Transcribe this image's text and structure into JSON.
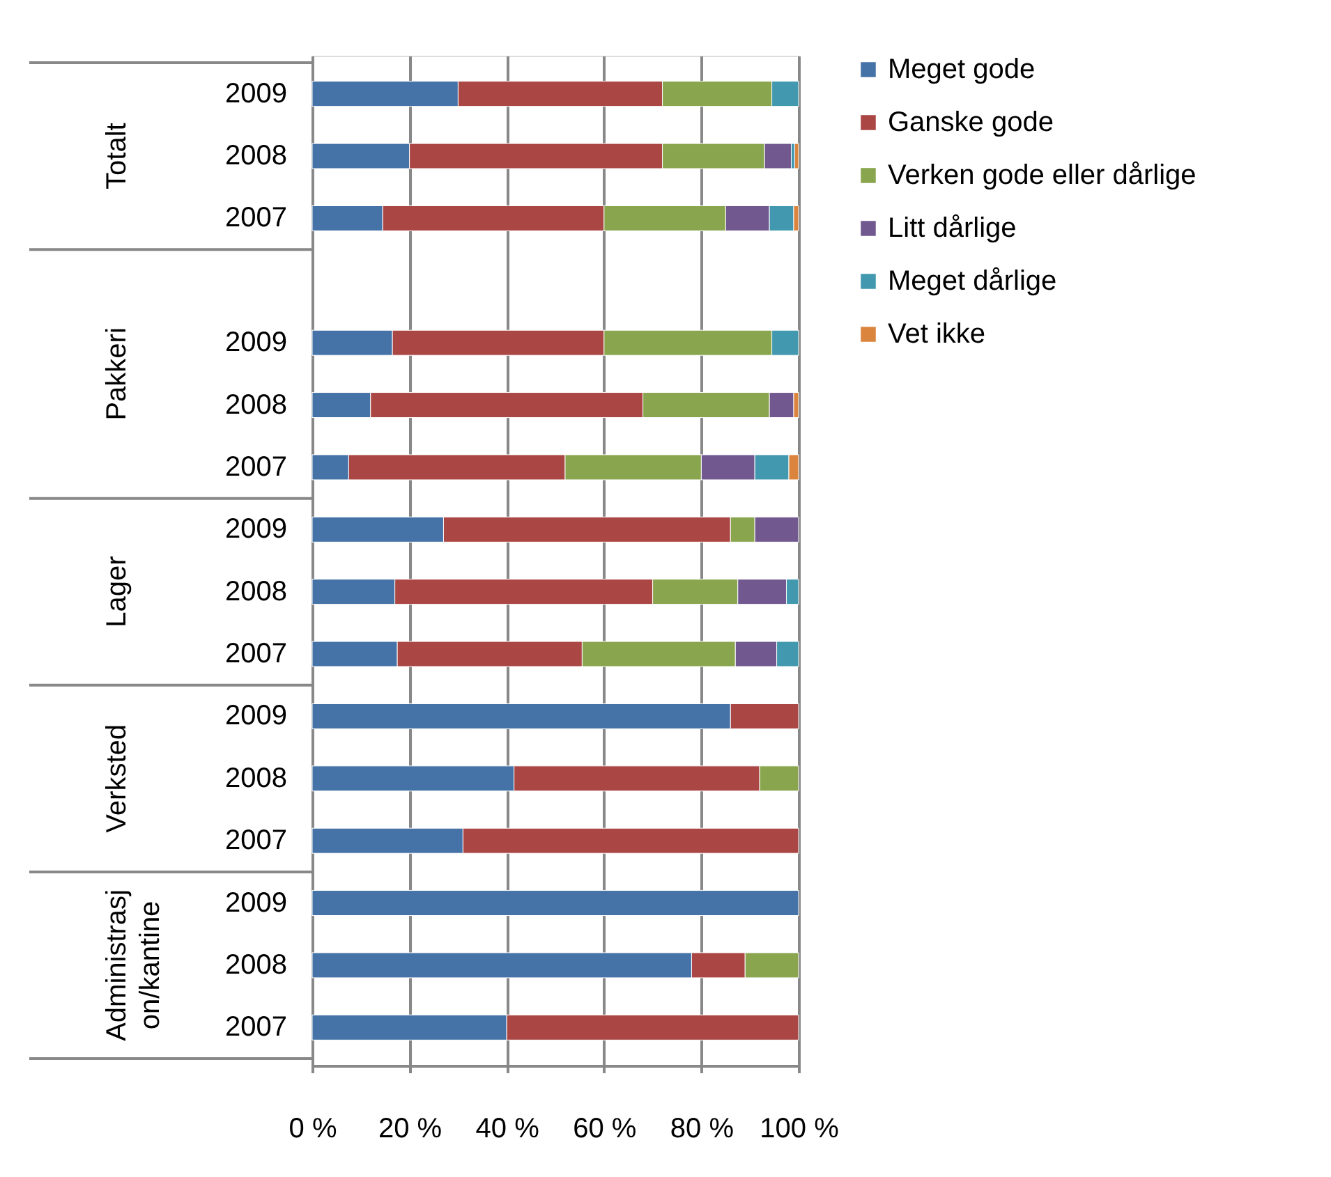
{
  "chart_data": {
    "type": "bar",
    "orientation": "horizontal",
    "stacked": true,
    "categories": [
      "2009",
      "2008",
      "2007",
      null,
      "2009",
      "2008",
      "2007",
      "2009",
      "2008",
      "2007",
      "2009",
      "2008",
      "2007",
      "2009",
      "2008",
      "2007"
    ],
    "series": [
      {
        "name": "Meget gode",
        "color": "#4572a7",
        "values": [
          30,
          20,
          14.5,
          null,
          16.5,
          12,
          7.5,
          27,
          17,
          17.5,
          86,
          41.5,
          31,
          100,
          78,
          40
        ]
      },
      {
        "name": "Ganske gode",
        "color": "#aa4643",
        "values": [
          42,
          52,
          45.5,
          null,
          43.5,
          56,
          44.5,
          59,
          53,
          38,
          14,
          50.5,
          69,
          null,
          11,
          60
        ]
      },
      {
        "name": "Verken gode eller dårlige",
        "color": "#89a54e",
        "values": [
          22.5,
          21,
          25,
          null,
          34.5,
          26,
          28,
          5,
          17.5,
          31.5,
          null,
          8,
          null,
          null,
          11,
          null
        ]
      },
      {
        "name": "Litt dårlige",
        "color": "#71588f",
        "values": [
          null,
          5.5,
          9,
          null,
          null,
          5,
          11,
          9,
          10,
          8.5,
          null,
          null,
          null,
          null,
          null,
          null
        ]
      },
      {
        "name": "Meget dårlige",
        "color": "#4198af",
        "values": [
          5.5,
          0.7,
          5,
          null,
          5.5,
          null,
          7,
          null,
          2.5,
          4.5,
          null,
          null,
          null,
          null,
          null,
          null
        ]
      },
      {
        "name": "Vet ikke",
        "color": "#db843d",
        "values": [
          null,
          0.8,
          1,
          null,
          null,
          1,
          2,
          null,
          null,
          null,
          null,
          null,
          null,
          null,
          null,
          null
        ]
      }
    ],
    "annotations": [
      "Totalt",
      "Pakkeri",
      "Lager",
      "Verksted",
      "Administrasjon/kantine"
    ],
    "xlim": [
      0,
      100
    ],
    "xticks": [
      {
        "value": 0,
        "label": "0 %"
      },
      {
        "value": 20,
        "label": "20 %"
      },
      {
        "value": 40,
        "label": "40 %"
      },
      {
        "value": 60,
        "label": "60 %"
      },
      {
        "value": 80,
        "label": "80 %"
      },
      {
        "value": 100,
        "label": "100 %"
      }
    ],
    "grid": "x",
    "legend": "right"
  }
}
